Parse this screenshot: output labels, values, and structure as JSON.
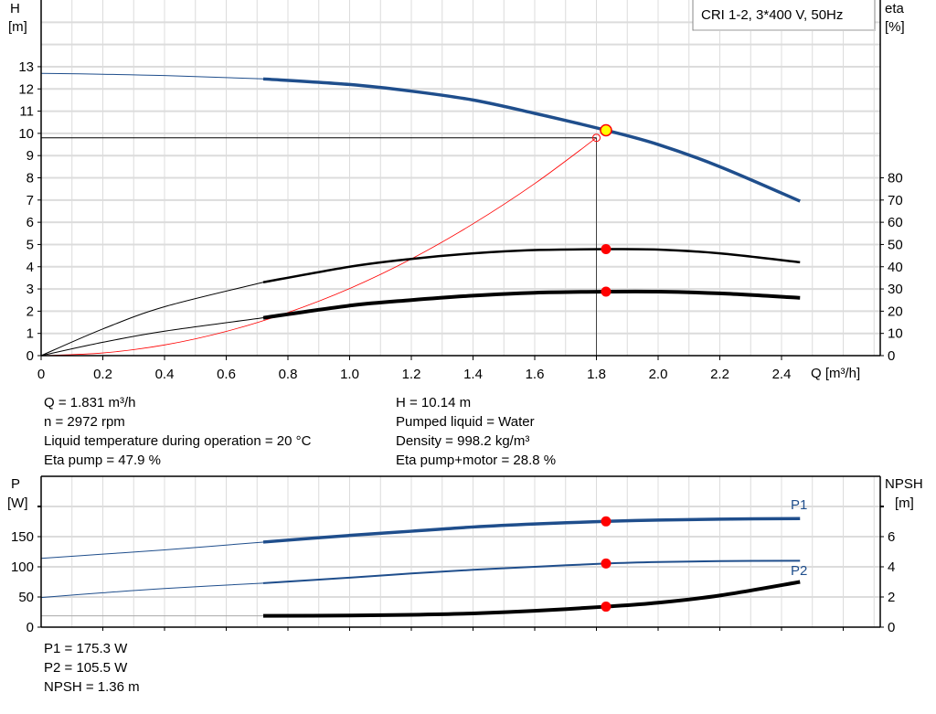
{
  "legend_box": "CRI 1-2, 3*400 V, 50Hz",
  "chart_data": [
    {
      "type": "line",
      "xlabel": "Q [m³/h]",
      "ylabel": "H",
      "ylabel_unit": "[m]",
      "y2label": "eta",
      "y2label_unit": "[%]",
      "xlim": [
        0,
        2.72
      ],
      "ylim": [
        0,
        16
      ],
      "y2lim": [
        0,
        160
      ],
      "grid": true,
      "x_ticks": [
        "0",
        "0.2",
        "0.4",
        "0.6",
        "0.8",
        "1.0",
        "1.2",
        "1.4",
        "1.6",
        "1.8",
        "2.0",
        "2.2",
        "2.4"
      ],
      "y_ticks": [
        "0",
        "1",
        "2",
        "3",
        "4",
        "5",
        "6",
        "7",
        "8",
        "9",
        "10",
        "11",
        "12",
        "13"
      ],
      "y2_ticks": [
        "0",
        "10",
        "20",
        "30",
        "40",
        "50",
        "60",
        "70",
        "80"
      ],
      "operating_point": {
        "Q": 1.831,
        "H": 10.14,
        "color": "#ffff00"
      },
      "duty_point": {
        "Q": 1.8,
        "H": 9.8
      },
      "series": [
        {
          "key": "H",
          "axis": "left",
          "color": "#1f4e8c",
          "x": [
            0,
            0.2,
            0.4,
            0.72,
            1.0,
            1.2,
            1.4,
            1.6,
            1.831,
            2.0,
            2.2,
            2.46
          ],
          "y": [
            12.7,
            12.66,
            12.6,
            12.45,
            12.2,
            11.9,
            11.5,
            10.9,
            10.14,
            9.5,
            8.5,
            6.95
          ]
        },
        {
          "key": "eta_pump",
          "axis": "right",
          "color": "#000000",
          "x": [
            0,
            0.2,
            0.4,
            0.72,
            1.0,
            1.2,
            1.4,
            1.6,
            1.831,
            2.0,
            2.2,
            2.46
          ],
          "y": [
            0,
            12,
            22,
            33,
            40,
            43.5,
            46,
            47.5,
            47.9,
            47.7,
            46,
            42
          ],
          "marker_at": 1.831,
          "marker_value": 47.9
        },
        {
          "key": "eta_pump_motor",
          "axis": "right",
          "color": "#000000",
          "x": [
            0,
            0.2,
            0.4,
            0.72,
            1.0,
            1.2,
            1.4,
            1.6,
            1.831,
            2.0,
            2.2,
            2.46
          ],
          "y": [
            0,
            6,
            11,
            17,
            22.5,
            25,
            27,
            28.3,
            28.8,
            28.8,
            28,
            26
          ],
          "marker_at": 1.831,
          "marker_value": 28.8
        },
        {
          "key": "system_curve",
          "axis": "left",
          "color": "#ff0000",
          "x": [
            0,
            0.2,
            0.4,
            0.6,
            0.8,
            1.0,
            1.2,
            1.4,
            1.6,
            1.8
          ],
          "y": [
            0,
            0.12,
            0.48,
            1.09,
            1.94,
            3.02,
            4.35,
            5.93,
            7.74,
            9.8
          ]
        }
      ]
    },
    {
      "type": "line",
      "ylabel": "P",
      "ylabel_unit": "[W]",
      "y2label": "NPSH",
      "y2label_unit": "[m]",
      "xlim": [
        0,
        2.72
      ],
      "ylim": [
        0,
        250
      ],
      "y2lim": [
        0,
        10
      ],
      "grid": true,
      "y_ticks": [
        "0",
        "50",
        "100",
        "150"
      ],
      "y2_ticks": [
        "0",
        "2",
        "4",
        "6"
      ],
      "series": [
        {
          "key": "P1",
          "name": "P1",
          "axis": "left",
          "color": "#1f4e8c",
          "x": [
            0,
            0.2,
            0.4,
            0.72,
            1.0,
            1.2,
            1.4,
            1.6,
            1.831,
            2.0,
            2.2,
            2.46
          ],
          "y": [
            114,
            121,
            128,
            141,
            152,
            159,
            166,
            171,
            175.3,
            177.5,
            179,
            180
          ],
          "marker_value": 175.3
        },
        {
          "key": "P2",
          "name": "P2",
          "axis": "left",
          "color": "#1f4e8c",
          "x": [
            0,
            0.2,
            0.4,
            0.72,
            1.0,
            1.2,
            1.4,
            1.6,
            1.831,
            2.0,
            2.2,
            2.46
          ],
          "y": [
            49,
            57,
            64,
            73,
            82,
            89,
            95,
            100,
            105.5,
            108,
            109.5,
            110
          ],
          "marker_value": 105.5
        },
        {
          "key": "NPSH",
          "axis": "right",
          "color": "#000000",
          "x": [
            0,
            0.2,
            0.4,
            0.72,
            1.0,
            1.2,
            1.4,
            1.6,
            1.831,
            2.0,
            2.2,
            2.46
          ],
          "y": [
            0.75,
            0.75,
            0.75,
            0.75,
            0.77,
            0.82,
            0.91,
            1.08,
            1.36,
            1.62,
            2.1,
            3.0
          ],
          "marker_value": 1.36
        }
      ]
    }
  ],
  "info": {
    "left": [
      "Q = 1.831 m³/h",
      "n = 2972 rpm",
      "Liquid temperature during operation = 20 °C",
      "Eta pump = 47.9 %"
    ],
    "right": [
      "H = 10.14 m",
      "Pumped liquid = Water",
      "Density = 998.2 kg/m³",
      "Eta pump+motor = 28.8 %"
    ],
    "bottom": [
      "P1 = 175.3 W",
      "P2 = 105.5 W",
      "NPSH = 1.36 m"
    ]
  }
}
